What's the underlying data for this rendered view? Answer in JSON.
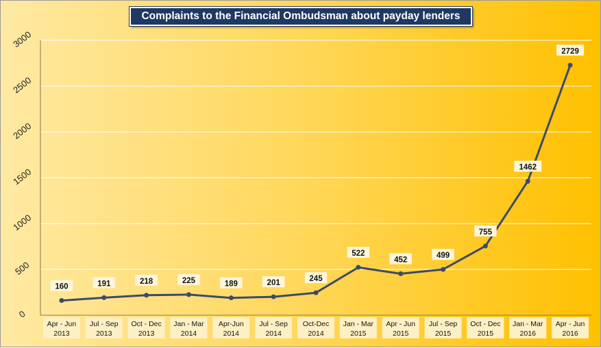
{
  "chart_data": {
    "type": "line",
    "title": "Complaints to the Financial Ombudsman about payday lenders",
    "categories": [
      [
        "Apr - Jun",
        "2013"
      ],
      [
        "Jul - Sep",
        "2013"
      ],
      [
        "Oct - Dec",
        "2013"
      ],
      [
        "Jan - Mar",
        "2014"
      ],
      [
        "Apr-Jun",
        "2014"
      ],
      [
        "Jul - Sep",
        "2014"
      ],
      [
        "Oct-Dec",
        "2014"
      ],
      [
        "Jan - Mar",
        "2015"
      ],
      [
        "Apr - Jun",
        "2015"
      ],
      [
        "Jul - Sep",
        "2015"
      ],
      [
        "Oct - Dec",
        "2015"
      ],
      [
        "Jan - Mar",
        "2016"
      ],
      [
        "Apr - Jun",
        "2016"
      ]
    ],
    "series": [
      {
        "values": [
          160,
          191,
          218,
          225,
          189,
          201,
          245,
          522,
          452,
          499,
          755,
          1462,
          2729
        ]
      }
    ],
    "ylim": [
      0,
      3000
    ],
    "yticks": [
      0,
      500,
      1000,
      1500,
      2000,
      2500,
      3000
    ],
    "grid": true,
    "line_color": "#3b4a6b",
    "xlabel": "",
    "ylabel": ""
  }
}
